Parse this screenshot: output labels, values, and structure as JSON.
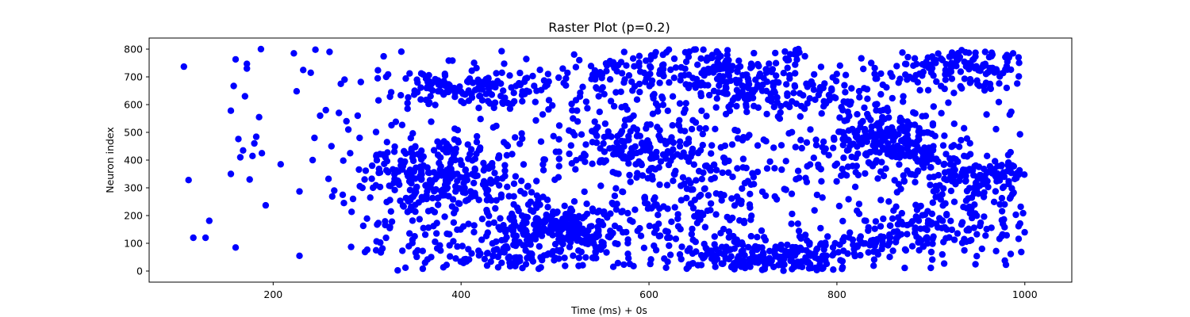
{
  "chart_data": {
    "type": "scatter",
    "title": "Raster Plot (p=0.2)",
    "xlabel": "Time (ms) + 0s",
    "ylabel": "Neuron index",
    "xlim": [
      68,
      1050
    ],
    "ylim": [
      -40,
      840
    ],
    "xticks": [
      200,
      400,
      600,
      800,
      1000
    ],
    "yticks": [
      0,
      100,
      200,
      300,
      400,
      500,
      600,
      700,
      800
    ],
    "grid": false,
    "legend": "none",
    "marker_color": "#0000ff",
    "series": [
      {
        "sparse_points": [
          [
            105,
            737
          ],
          [
            110,
            328
          ],
          [
            115,
            120
          ],
          [
            128,
            120
          ],
          [
            132,
            181
          ],
          [
            155,
            350
          ],
          [
            155,
            578
          ],
          [
            158,
            667
          ],
          [
            160,
            763
          ],
          [
            160,
            85
          ],
          [
            163,
            476
          ],
          [
            165,
            410
          ],
          [
            168,
            435
          ],
          [
            170,
            630
          ],
          [
            172,
            747
          ],
          [
            172,
            730
          ],
          [
            175,
            330
          ],
          [
            178,
            415
          ],
          [
            180,
            460
          ],
          [
            182,
            484
          ],
          [
            185,
            555
          ],
          [
            187,
            800
          ],
          [
            188,
            425
          ],
          [
            192,
            237
          ],
          [
            208,
            385
          ],
          [
            222,
            785
          ],
          [
            225,
            648
          ],
          [
            228,
            55
          ],
          [
            228,
            287
          ],
          [
            232,
            725
          ],
          [
            240,
            715
          ],
          [
            242,
            400
          ],
          [
            244,
            480
          ],
          [
            245,
            798
          ],
          [
            250,
            560
          ],
          [
            256,
            580
          ],
          [
            260,
            790
          ],
          [
            262,
            450
          ],
          [
            265,
            290
          ],
          [
            270,
            570
          ],
          [
            272,
            675
          ],
          [
            274,
            275
          ],
          [
            276,
            690
          ],
          [
            278,
            540
          ],
          [
            280,
            510
          ],
          [
            282,
            425
          ],
          [
            285,
            260
          ],
          [
            290,
            560
          ],
          [
            292,
            480
          ],
          [
            295,
            300
          ]
        ]
      }
    ],
    "clusters": [
      {
        "x": 400,
        "y": 650,
        "sx": 40,
        "sy": 35,
        "n": 130
      },
      {
        "x": 380,
        "y": 360,
        "sx": 40,
        "sy": 65,
        "n": 220
      },
      {
        "x": 350,
        "y": 240,
        "sx": 35,
        "sy": 90,
        "n": 60
      },
      {
        "x": 460,
        "y": 160,
        "sx": 40,
        "sy": 60,
        "n": 120
      },
      {
        "x": 520,
        "y": 150,
        "sx": 35,
        "sy": 50,
        "n": 180
      },
      {
        "x": 450,
        "y": 50,
        "sx": 60,
        "sy": 30,
        "n": 70
      },
      {
        "x": 590,
        "y": 450,
        "sx": 45,
        "sy": 60,
        "n": 150
      },
      {
        "x": 660,
        "y": 730,
        "sx": 55,
        "sy": 40,
        "n": 160
      },
      {
        "x": 740,
        "y": 640,
        "sx": 55,
        "sy": 40,
        "n": 140
      },
      {
        "x": 720,
        "y": 50,
        "sx": 45,
        "sy": 35,
        "n": 220
      },
      {
        "x": 690,
        "y": 330,
        "sx": 70,
        "sy": 100,
        "n": 110
      },
      {
        "x": 850,
        "y": 470,
        "sx": 35,
        "sy": 60,
        "n": 220
      },
      {
        "x": 940,
        "y": 740,
        "sx": 45,
        "sy": 40,
        "n": 140
      },
      {
        "x": 950,
        "y": 340,
        "sx": 40,
        "sy": 50,
        "n": 170
      },
      {
        "x": 900,
        "y": 170,
        "sx": 45,
        "sy": 55,
        "n": 130
      },
      {
        "x": 560,
        "y": 680,
        "sx": 40,
        "sy": 60,
        "n": 60
      },
      {
        "x": 820,
        "y": 80,
        "sx": 40,
        "sy": 40,
        "n": 50
      },
      {
        "x": 640,
        "y": 180,
        "sx": 50,
        "sy": 80,
        "n": 70
      }
    ]
  }
}
